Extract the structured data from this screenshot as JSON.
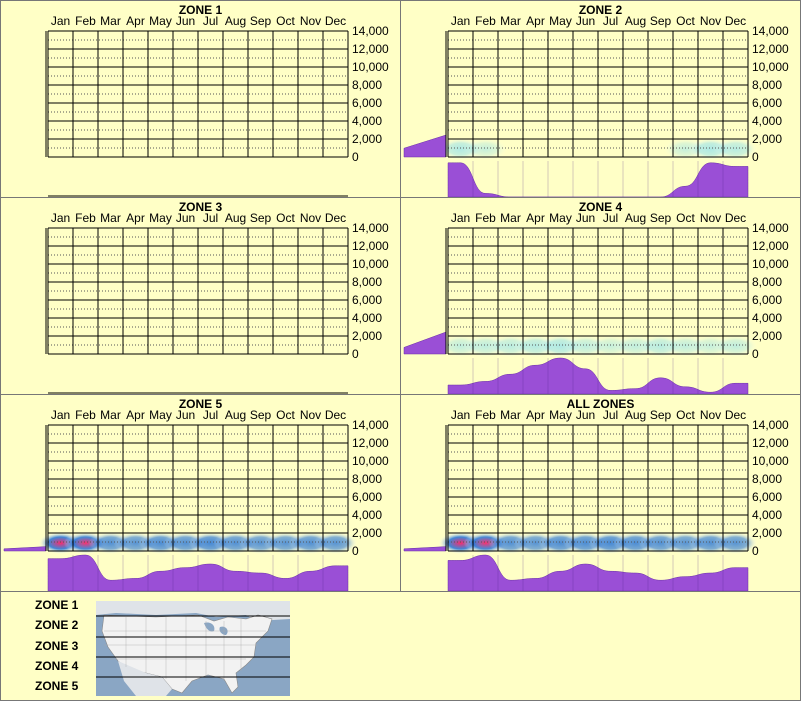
{
  "colors": {
    "background": "#ffffc6",
    "fill": "#9a4fd6",
    "grid": "#000000",
    "heat_low": "#8fe0f0",
    "heat_mid": "#2070d8",
    "heat_high": "#ff2a6a"
  },
  "legend": {
    "zones": [
      "ZONE 1",
      "ZONE 2",
      "ZONE 3",
      "ZONE 4",
      "ZONE 5"
    ],
    "map_icon": "us-map-icon"
  },
  "chart_data": [
    {
      "type": "heatmap",
      "title": "ZONE 1",
      "categories": [
        "Jan",
        "Feb",
        "Mar",
        "Apr",
        "May",
        "Jun",
        "Jul",
        "Aug",
        "Sep",
        "Oct",
        "Nov",
        "Dec"
      ],
      "y_ticks": [
        "14,000",
        "12,000",
        "10,000",
        "8,000",
        "6,000",
        "4,000",
        "2,000",
        "0"
      ],
      "ylim": [
        0,
        14000
      ],
      "heat": [
        0,
        0,
        0,
        0,
        0,
        0,
        0,
        0,
        0,
        0,
        0,
        0
      ],
      "monthly_profile": [
        0,
        0,
        0,
        0,
        0,
        0,
        0,
        0,
        0,
        0,
        0,
        0
      ],
      "elevation_profile": [
        0,
        0
      ]
    },
    {
      "type": "heatmap",
      "title": "ZONE 2",
      "categories": [
        "Jan",
        "Feb",
        "Mar",
        "Apr",
        "May",
        "Jun",
        "Jul",
        "Aug",
        "Sep",
        "Oct",
        "Nov",
        "Dec"
      ],
      "y_ticks": [
        "14,000",
        "12,000",
        "10,000",
        "8,000",
        "6,000",
        "4,000",
        "2,000",
        "0"
      ],
      "ylim": [
        0,
        14000
      ],
      "heat": [
        0.4,
        0.05,
        0,
        0,
        0,
        0,
        0,
        0,
        0,
        0.05,
        0.45,
        0.3
      ],
      "monthly_profile": [
        0.95,
        0.1,
        0,
        0,
        0,
        0,
        0,
        0,
        0,
        0.3,
        0.95,
        0.85
      ],
      "elevation_profile": [
        0.4,
        1
      ]
    },
    {
      "type": "heatmap",
      "title": "ZONE 3",
      "categories": [
        "Jan",
        "Feb",
        "Mar",
        "Apr",
        "May",
        "Jun",
        "Jul",
        "Aug",
        "Sep",
        "Oct",
        "Nov",
        "Dec"
      ],
      "y_ticks": [
        "14,000",
        "12,000",
        "10,000",
        "8,000",
        "6,000",
        "4,000",
        "2,000",
        "0"
      ],
      "ylim": [
        0,
        14000
      ],
      "heat": [
        0,
        0,
        0,
        0,
        0,
        0,
        0,
        0,
        0,
        0,
        0,
        0
      ],
      "monthly_profile": [
        0,
        0,
        0,
        0,
        0,
        0,
        0,
        0,
        0,
        0,
        0,
        0
      ],
      "elevation_profile": [
        0,
        0
      ]
    },
    {
      "type": "heatmap",
      "title": "ZONE 4",
      "categories": [
        "Jan",
        "Feb",
        "Mar",
        "Apr",
        "May",
        "Jun",
        "Jul",
        "Aug",
        "Sep",
        "Oct",
        "Nov",
        "Dec"
      ],
      "y_ticks": [
        "14,000",
        "12,000",
        "10,000",
        "8,000",
        "6,000",
        "4,000",
        "2,000",
        "0"
      ],
      "ylim": [
        0,
        14000
      ],
      "heat": [
        0.15,
        0.2,
        0.25,
        0.35,
        0.45,
        0.2,
        0.05,
        0.15,
        0.3,
        0.15,
        0.05,
        0.15
      ],
      "monthly_profile": [
        0.25,
        0.35,
        0.55,
        0.8,
        1,
        0.7,
        0.1,
        0.15,
        0.45,
        0.2,
        0.05,
        0.3
      ],
      "elevation_profile": [
        0.3,
        1
      ]
    },
    {
      "type": "heatmap",
      "title": "ZONE 5",
      "categories": [
        "Jan",
        "Feb",
        "Mar",
        "Apr",
        "May",
        "Jun",
        "Jul",
        "Aug",
        "Sep",
        "Oct",
        "Nov",
        "Dec"
      ],
      "y_ticks": [
        "14,000",
        "12,000",
        "10,000",
        "8,000",
        "6,000",
        "4,000",
        "2,000",
        "0"
      ],
      "ylim": [
        0,
        14000
      ],
      "heat": [
        1,
        0.95,
        0.55,
        0.5,
        0.6,
        0.55,
        0.65,
        0.55,
        0.5,
        0.5,
        0.55,
        0.5
      ],
      "monthly_profile": [
        0.9,
        1,
        0.3,
        0.35,
        0.55,
        0.65,
        0.75,
        0.55,
        0.5,
        0.35,
        0.55,
        0.7
      ],
      "elevation_profile": [
        0.1,
        0.2
      ]
    },
    {
      "type": "heatmap",
      "title": "ALL ZONES",
      "categories": [
        "Jan",
        "Feb",
        "Mar",
        "Apr",
        "May",
        "Jun",
        "Jul",
        "Aug",
        "Sep",
        "Oct",
        "Nov",
        "Dec"
      ],
      "y_ticks": [
        "14,000",
        "12,000",
        "10,000",
        "8,000",
        "6,000",
        "4,000",
        "2,000",
        "0"
      ],
      "ylim": [
        0,
        14000
      ],
      "heat": [
        1,
        0.95,
        0.55,
        0.5,
        0.6,
        0.6,
        0.65,
        0.6,
        0.55,
        0.5,
        0.55,
        0.5
      ],
      "monthly_profile": [
        0.85,
        1,
        0.3,
        0.35,
        0.55,
        0.75,
        0.55,
        0.5,
        0.3,
        0.4,
        0.5,
        0.65
      ],
      "elevation_profile": [
        0.1,
        0.2
      ]
    }
  ]
}
